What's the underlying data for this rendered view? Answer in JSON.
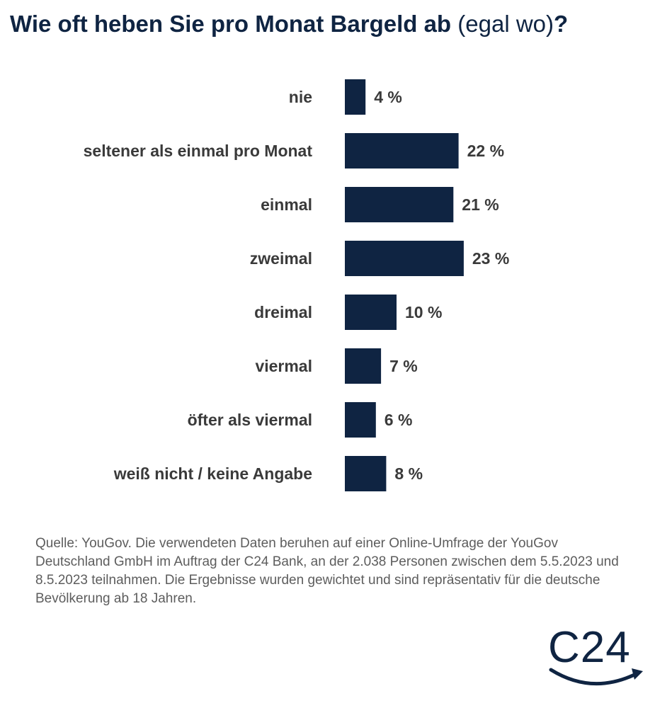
{
  "title": {
    "main": "Wie oft heben Sie pro Monat Bargeld ab",
    "parenthetical": "(egal wo)",
    "suffix": "?"
  },
  "chart_data": {
    "type": "bar",
    "orientation": "horizontal",
    "categories": [
      "nie",
      "seltener als einmal pro Monat",
      "einmal",
      "zweimal",
      "dreimal",
      "viermal",
      "öfter als viermal",
      "weiß nicht / keine Angabe"
    ],
    "values": [
      4,
      22,
      21,
      23,
      10,
      7,
      6,
      8
    ],
    "value_labels": [
      "4 %",
      "22 %",
      "21 %",
      "23 %",
      "10 %",
      "7 %",
      "6 %",
      "8 %"
    ],
    "unit": "%",
    "bar_color": "#0f2442",
    "xlim": [
      0,
      100
    ],
    "grid": false,
    "legend": "none"
  },
  "source": "Quelle: YouGov. Die verwendeten Daten beruhen auf einer Online-Umfrage der YouGov Deutschland GmbH im Auftrag der C24 Bank, an der 2.038 Personen zwischen dem 5.5.2023 und 8.5.2023 teilnahmen. Die Ergebnisse wurden gewichtet und sind repräsentativ für die deutsche Bevölkerung ab 18 Jahren.",
  "logo": {
    "text": "C24",
    "color": "#0f2442"
  }
}
